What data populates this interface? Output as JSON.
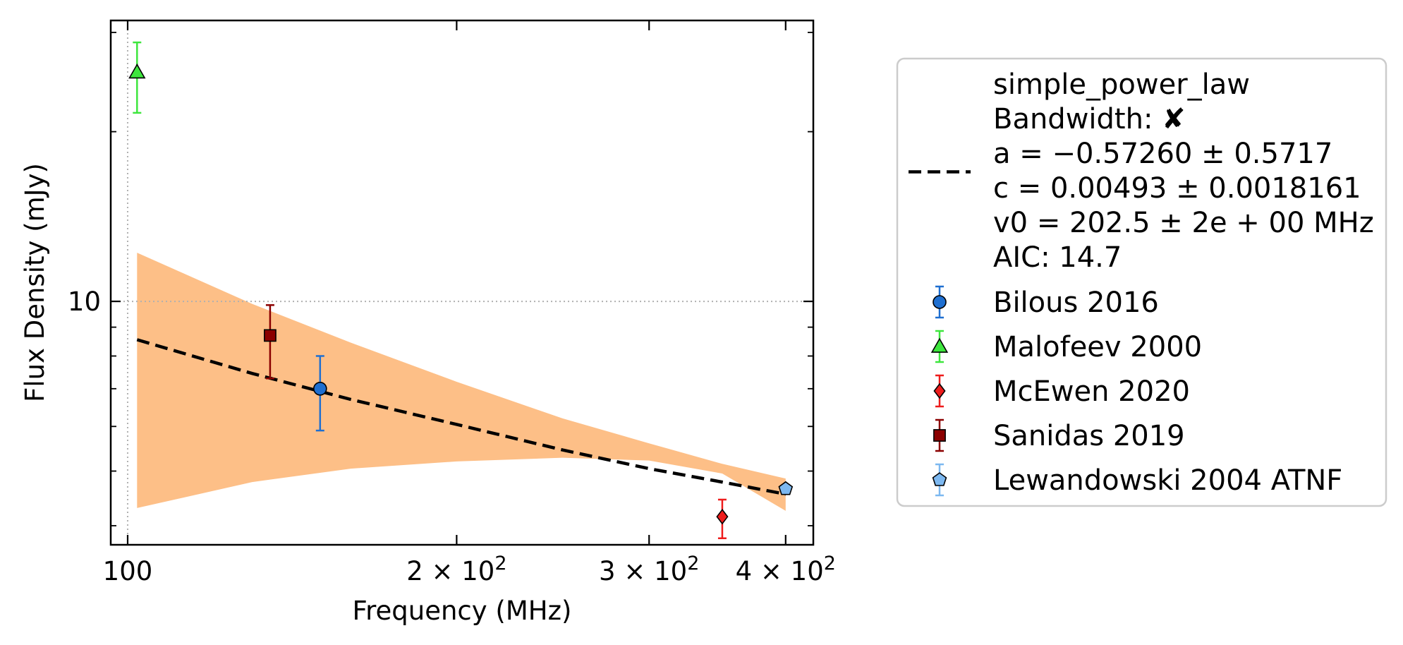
{
  "chart_data": {
    "type": "scatter",
    "xlabel": "Frequency (MHz)",
    "ylabel": "Flux Density (mJy)",
    "x_scale": "log",
    "y_scale": "log",
    "xlim": [
      96.5,
      424
    ],
    "ylim": [
      3.7,
      31.5
    ],
    "x_ticks": [
      {
        "value": 100,
        "label": "100"
      },
      {
        "value": 200,
        "label": "2 × 10",
        "exp": "2"
      },
      {
        "value": 300,
        "label": "3 × 10",
        "exp": "2"
      },
      {
        "value": 400,
        "label": "4 × 10",
        "exp": "2"
      }
    ],
    "y_ticks": [
      {
        "value": 10,
        "label": "10"
      }
    ],
    "reference_lines": {
      "x": 100,
      "y": 10,
      "style": "dotted",
      "color": "#b0b0b0"
    },
    "fit": {
      "label_lines": [
        "simple_power_law",
        "Bandwidth: ✘",
        "a = −0.57260 ± 0.5717",
        "c = 0.00493 ± 0.0018161",
        "v0 = 202.5 ± 2e + 00 MHz",
        "AIC: 14.7"
      ],
      "x": [
        102,
        130,
        160,
        200,
        250,
        300,
        350,
        400
      ],
      "y": [
        8.55,
        7.45,
        6.7,
        6.05,
        5.45,
        5.05,
        4.78,
        4.55
      ],
      "band_upper": [
        12.2,
        9.9,
        8.45,
        7.2,
        6.2,
        5.6,
        5.15,
        4.85
      ],
      "band_lower": [
        4.3,
        4.78,
        5.05,
        5.2,
        5.28,
        5.22,
        4.95,
        4.25
      ],
      "line_color": "#000000",
      "band_color": "#fdbf87"
    },
    "series": [
      {
        "name": "Bilous 2016",
        "marker": "circle",
        "color": "#1f6fd0",
        "points": [
          {
            "x": 150,
            "y": 7.0,
            "y_low": 5.9,
            "y_high": 8.0
          }
        ]
      },
      {
        "name": "Malofeev 2000",
        "marker": "triangle",
        "color": "#3ee63e",
        "points": [
          {
            "x": 102,
            "y": 25.5,
            "y_low": 21.6,
            "y_high": 28.8
          }
        ]
      },
      {
        "name": "McEwen 2020",
        "marker": "diamond",
        "color": "#ee1c1c",
        "points": [
          {
            "x": 350,
            "y": 4.15,
            "y_low": 3.8,
            "y_high": 4.45
          }
        ]
      },
      {
        "name": "Sanidas 2019",
        "marker": "square",
        "color": "#8b0000",
        "points": [
          {
            "x": 135,
            "y": 8.7,
            "y_low": 7.3,
            "y_high": 9.85
          }
        ]
      },
      {
        "name": "Lewandowski 2004 ATNF",
        "marker": "pentagon",
        "color": "#7db8f0",
        "points": [
          {
            "x": 400,
            "y": 4.65,
            "y_low": 4.6,
            "y_high": 4.7
          }
        ]
      }
    ],
    "legend": {
      "placement": "right"
    }
  }
}
